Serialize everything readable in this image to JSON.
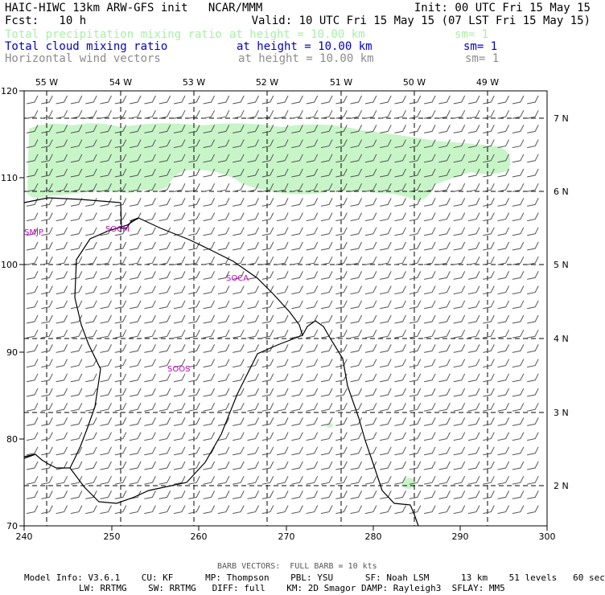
{
  "header": {
    "line1_left": "HAIC-HIWC 13km ARW-GFS init   NCAR/MMM",
    "line1_right": "Init: 00 UTC Fri 15 May 15",
    "line2_left": "Fcst:   10 h",
    "line2_right": "Valid: 10 UTC Fri 15 May 15 (07 LST Fri 15 May 15)",
    "fields": [
      {
        "name": "Total precipitation mixing ratio",
        "height": "at height = 10.00 km",
        "sm": "sm= 1",
        "color": "#a8f0a8"
      },
      {
        "name": "Total cloud mixing ratio",
        "height": "at height = 10.00 km",
        "sm": "sm= 1",
        "color": "#0000c8"
      },
      {
        "name": "Horizontal wind vectors",
        "height": "at height = 10.00 km",
        "sm": "sm= 1",
        "color": "#8c8c8c"
      }
    ]
  },
  "map": {
    "x_ticks": [
      "240",
      "250",
      "260",
      "270",
      "280",
      "290",
      "300"
    ],
    "y_ticks": [
      "70",
      "80",
      "90",
      "100",
      "110",
      "120"
    ],
    "lon_labels": [
      "55 W",
      "54 W",
      "53 W",
      "52 W",
      "51 W",
      "50 W",
      "49 W"
    ],
    "lat_labels": [
      "7 N",
      "6 N",
      "5 N",
      "4 N",
      "3 N",
      "2 N"
    ],
    "stations": [
      "SMJP",
      "SOCM",
      "SOCA",
      "SOOS"
    ],
    "colors": {
      "precip": "#c8f5c8",
      "coast": "#000000",
      "barb": "#555555",
      "station": "#c000c0"
    }
  },
  "footer": {
    "barb_note": "BARB VECTORS:  FULL BARB = 10 kts",
    "line1": "Model Info: V3.6.1    CU: KF      MP: Thompson    PBL: YSU      SF: Noah LSM      13 km    51 levels   60 sec",
    "line2": "LW: RRTMG    SW: RRTMG   DIFF: full    KM: 2D Smagor DAMP: Rayleigh3  SFLAY: MM5"
  }
}
